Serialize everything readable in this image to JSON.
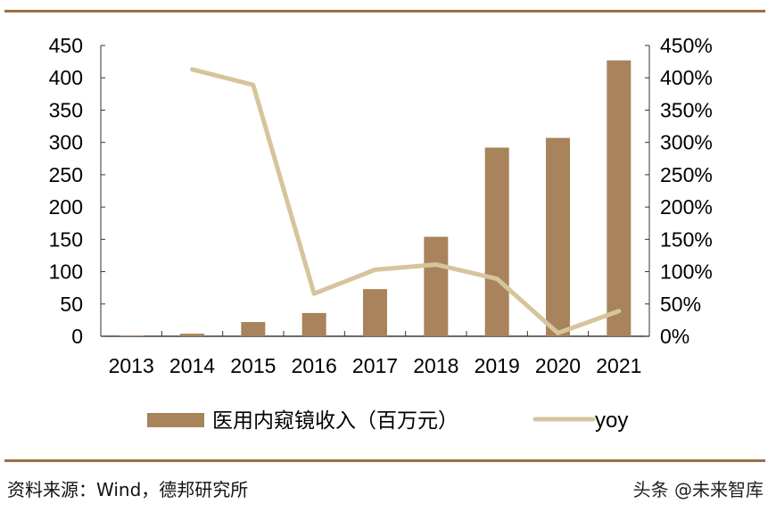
{
  "chart_data": {
    "type": "bar",
    "title": "",
    "categories": [
      "2013",
      "2014",
      "2015",
      "2016",
      "2017",
      "2018",
      "2019",
      "2020",
      "2021"
    ],
    "series": [
      {
        "name": "医用内窥镜收入（百万元）",
        "type": "bar",
        "axis": "left",
        "color": "#A8835B",
        "values": [
          1,
          4,
          22,
          36,
          73,
          154,
          292,
          307,
          427
        ]
      },
      {
        "name": "yoy",
        "type": "line",
        "axis": "right",
        "color": "#D6C49C",
        "values": [
          null,
          413,
          389,
          66,
          103,
          111,
          89,
          5,
          39
        ]
      }
    ],
    "ylim": [
      0,
      450
    ],
    "y_ticks": [
      "0",
      "50",
      "100",
      "150",
      "200",
      "250",
      "300",
      "350",
      "400",
      "450"
    ],
    "y2lim": [
      0,
      450
    ],
    "y2_ticks": [
      "0%",
      "50%",
      "100%",
      "150%",
      "200%",
      "250%",
      "300%",
      "350%",
      "400%",
      "450%"
    ],
    "legend_position": "bottom",
    "grid": false
  },
  "footer": {
    "source": "资料来源：Wind，德邦研究所",
    "watermark": "头条 @未来智库"
  }
}
